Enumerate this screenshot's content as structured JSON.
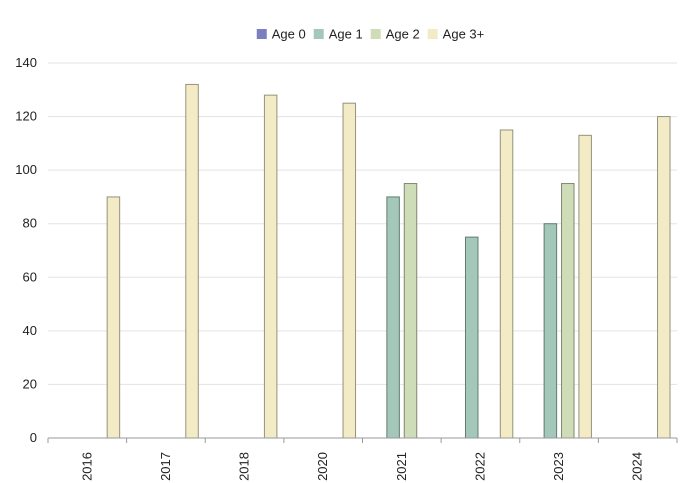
{
  "chart_data": {
    "type": "bar",
    "categories": [
      "2016",
      "2017",
      "2018",
      "2020",
      "2021",
      "2022",
      "2023",
      "2024"
    ],
    "series": [
      {
        "name": "Age 0",
        "color": "#7b7fbf",
        "values": [
          null,
          null,
          null,
          null,
          null,
          null,
          null,
          null
        ]
      },
      {
        "name": "Age 1",
        "color": "#a3c7b8",
        "values": [
          null,
          null,
          null,
          null,
          90,
          75,
          80,
          null
        ]
      },
      {
        "name": "Age 2",
        "color": "#cfdcb8",
        "values": [
          null,
          null,
          null,
          null,
          95,
          null,
          95,
          null
        ]
      },
      {
        "name": "Age 3+",
        "color": "#f2ebc6",
        "values": [
          90,
          132,
          128,
          125,
          null,
          115,
          113,
          120
        ]
      }
    ],
    "ylim": [
      0,
      140
    ],
    "yticks": [
      0,
      20,
      40,
      60,
      80,
      100,
      120,
      140
    ],
    "grid": true,
    "legend_position": "top-center",
    "title": "",
    "xlabel": "",
    "ylabel": ""
  }
}
